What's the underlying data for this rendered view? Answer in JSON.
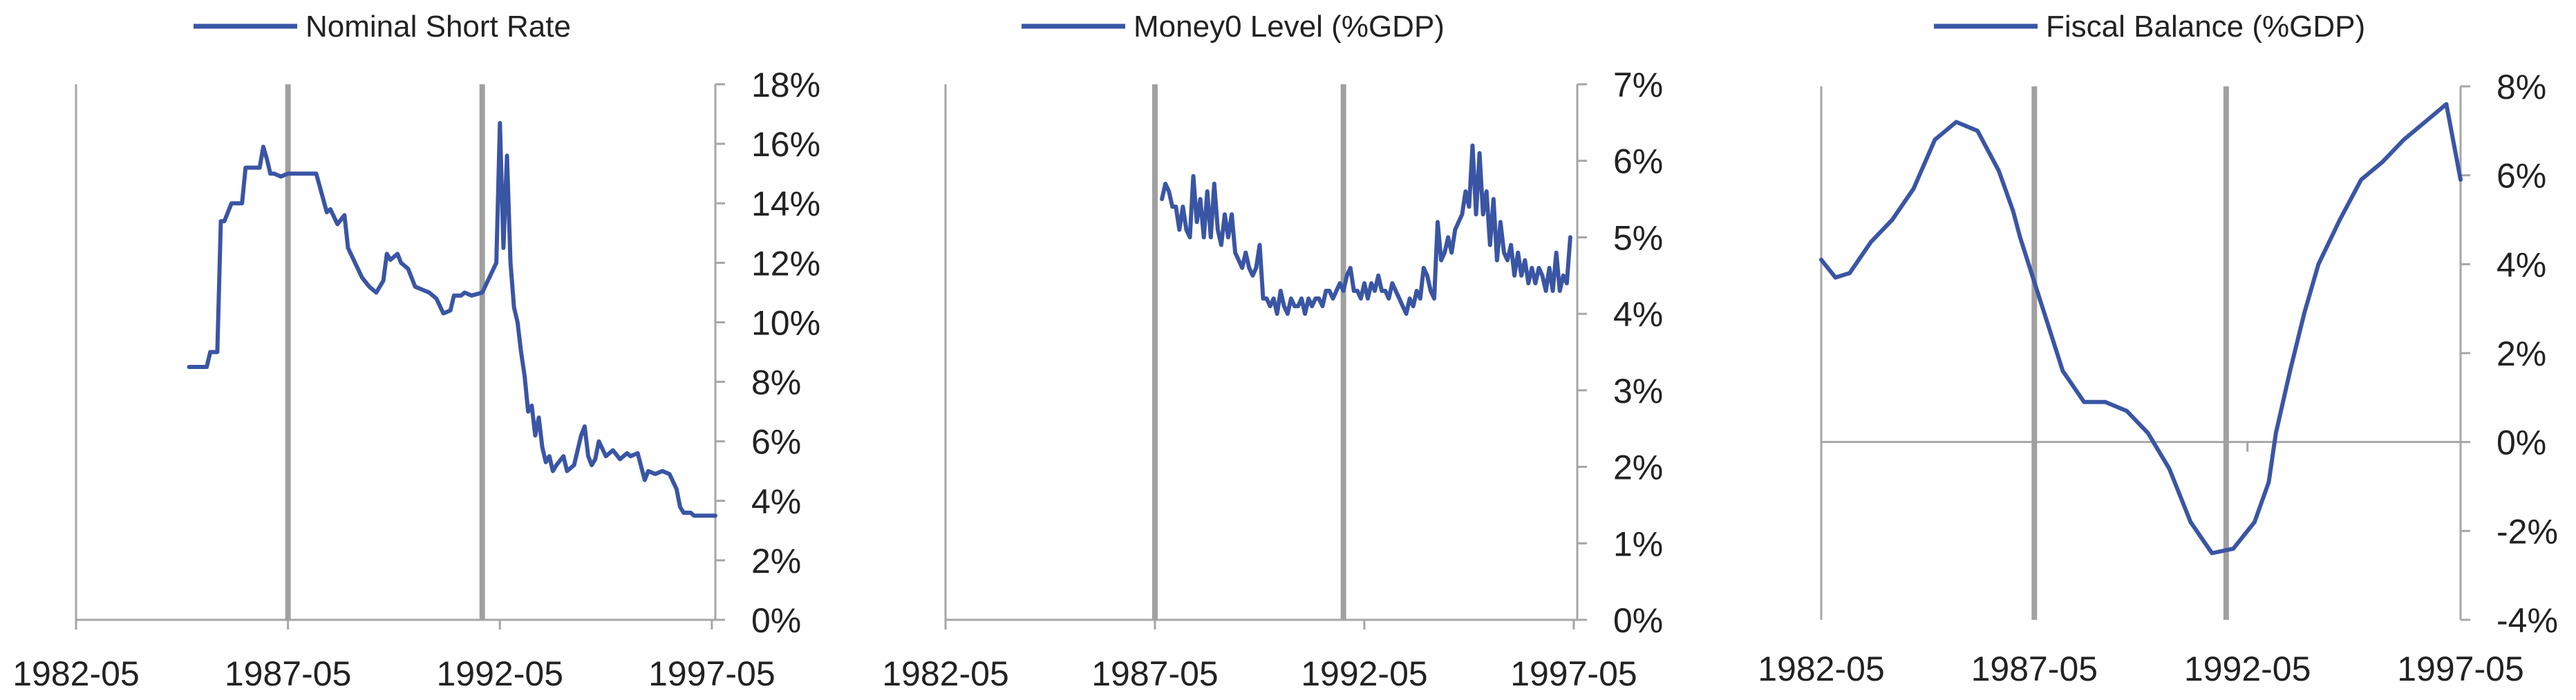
{
  "colors": {
    "series": "#3a55a4",
    "axis": "#a6a6a6",
    "marker": "#a0a0a0",
    "text": "#222222"
  },
  "chart_data": [
    {
      "type": "line",
      "title": "",
      "xlabel": "",
      "ylabel": "",
      "legend_position": "top",
      "x_range": [
        1982.3333,
        1997.4167
      ],
      "xticks": [
        1982.3333,
        1987.3333,
        1992.3333,
        1997.3333
      ],
      "xtick_labels": [
        "1982-05",
        "1987-05",
        "1992-05",
        "1997-05"
      ],
      "ylim": [
        0,
        18
      ],
      "yticks": [
        0,
        2,
        4,
        6,
        8,
        10,
        12,
        14,
        16,
        18
      ],
      "ytick_labels": [
        "0%",
        "2%",
        "4%",
        "6%",
        "8%",
        "10%",
        "12%",
        "14%",
        "16%",
        "18%"
      ],
      "grid": false,
      "vertical_markers": [
        1987.3333,
        1991.9167
      ],
      "series": [
        {
          "name": "Nominal Short Rate",
          "x": [
            1985.0,
            1985.4167,
            1985.5,
            1985.6667,
            1985.75,
            1985.8333,
            1986.0,
            1986.25,
            1986.3333,
            1986.5,
            1986.6667,
            1986.75,
            1986.8333,
            1986.9167,
            1987.0,
            1987.1667,
            1987.3333,
            1987.5,
            1987.6667,
            1988.0,
            1988.25,
            1988.3333,
            1988.5,
            1988.6667,
            1988.75,
            1988.9167,
            1989.0833,
            1989.25,
            1989.4167,
            1989.5833,
            1989.6667,
            1989.75,
            1989.9167,
            1990.0,
            1990.0833,
            1990.1667,
            1990.3333,
            1990.5,
            1990.6667,
            1990.8333,
            1991.0,
            1991.1667,
            1991.25,
            1991.4167,
            1991.5,
            1991.6667,
            1991.9167,
            1992.0833,
            1992.25,
            1992.3333,
            1992.4167,
            1992.5,
            1992.5833,
            1992.6667,
            1992.75,
            1992.8333,
            1992.9167,
            1993.0,
            1993.0833,
            1993.1667,
            1993.25,
            1993.3333,
            1993.4167,
            1993.5,
            1993.5833,
            1993.6667,
            1993.8333,
            1993.9167,
            1994.0833,
            1994.25,
            1994.3333,
            1994.4167,
            1994.5,
            1994.5833,
            1994.6667,
            1994.8333,
            1995.0,
            1995.1667,
            1995.3333,
            1995.4167,
            1995.5833,
            1995.75,
            1995.8333,
            1996.0,
            1996.1667,
            1996.3333,
            1996.5,
            1996.5833,
            1996.6667,
            1996.8333,
            1996.9167,
            1997.0,
            1997.1667,
            1997.25,
            1997.4167
          ],
          "y": [
            8.5,
            8.5,
            9.0,
            9.0,
            13.4,
            13.4,
            14.0,
            14.0,
            15.2,
            15.2,
            15.2,
            15.9,
            15.5,
            15.0,
            15.0,
            14.9,
            15.0,
            15.0,
            15.0,
            15.0,
            13.7,
            13.8,
            13.3,
            13.6,
            12.5,
            12.0,
            11.5,
            11.2,
            11.0,
            11.4,
            12.3,
            12.1,
            12.3,
            12.0,
            11.9,
            11.8,
            11.2,
            11.1,
            11.0,
            10.8,
            10.3,
            10.4,
            10.9,
            10.9,
            11.0,
            10.9,
            11.0,
            11.5,
            12.0,
            16.7,
            12.5,
            15.6,
            12.0,
            10.5,
            10.0,
            9.0,
            8.2,
            7.0,
            7.2,
            6.2,
            6.8,
            5.8,
            5.3,
            5.5,
            5.0,
            5.2,
            5.5,
            5.0,
            5.2,
            6.2,
            6.5,
            5.5,
            5.2,
            5.4,
            6.0,
            5.5,
            5.7,
            5.4,
            5.6,
            5.5,
            5.6,
            4.7,
            5.0,
            4.9,
            5.0,
            4.9,
            4.4,
            3.8,
            3.6,
            3.6,
            3.5,
            3.5,
            3.5,
            3.5,
            3.5
          ]
        }
      ]
    },
    {
      "type": "line",
      "title": "",
      "xlabel": "",
      "ylabel": "",
      "legend_position": "top",
      "x_range": [
        1982.3333,
        1997.4167
      ],
      "xticks": [
        1982.3333,
        1987.3333,
        1992.3333,
        1997.3333
      ],
      "xtick_labels": [
        "1982-05",
        "1987-05",
        "1992-05",
        "1997-05"
      ],
      "ylim": [
        0,
        7
      ],
      "yticks": [
        0,
        1,
        2,
        3,
        4,
        5,
        6,
        7
      ],
      "ytick_labels": [
        "0%",
        "1%",
        "2%",
        "3%",
        "4%",
        "5%",
        "6%",
        "7%"
      ],
      "grid": false,
      "vertical_markers": [
        1987.3333,
        1991.8333
      ],
      "series": [
        {
          "name": "Money0 Level (%GDP)",
          "x": [
            1987.5,
            1987.5833,
            1987.6667,
            1987.75,
            1987.8333,
            1987.9167,
            1988.0,
            1988.0833,
            1988.1667,
            1988.25,
            1988.3333,
            1988.4167,
            1988.5,
            1988.5833,
            1988.6667,
            1988.75,
            1988.8333,
            1988.9167,
            1989.0,
            1989.0833,
            1989.1667,
            1989.25,
            1989.3333,
            1989.4167,
            1989.5,
            1989.5833,
            1989.6667,
            1989.75,
            1989.8333,
            1989.9167,
            1990.0,
            1990.0833,
            1990.1667,
            1990.25,
            1990.3333,
            1990.4167,
            1990.5,
            1990.5833,
            1990.6667,
            1990.75,
            1990.8333,
            1990.9167,
            1991.0,
            1991.0833,
            1991.1667,
            1991.25,
            1991.3333,
            1991.4167,
            1991.5,
            1991.5833,
            1991.6667,
            1991.75,
            1991.8333,
            1991.9167,
            1992.0,
            1992.0833,
            1992.1667,
            1992.25,
            1992.3333,
            1992.4167,
            1992.5,
            1992.5833,
            1992.6667,
            1992.75,
            1992.8333,
            1992.9167,
            1993.0,
            1993.0833,
            1993.1667,
            1993.25,
            1993.3333,
            1993.4167,
            1993.5,
            1993.5833,
            1993.6667,
            1993.75,
            1993.8333,
            1993.9167,
            1994.0,
            1994.0833,
            1994.1667,
            1994.25,
            1994.3333,
            1994.4167,
            1994.5,
            1994.5833,
            1994.6667,
            1994.75,
            1994.8333,
            1994.9167,
            1995.0,
            1995.0833,
            1995.1667,
            1995.25,
            1995.3333,
            1995.4167,
            1995.5,
            1995.5833,
            1995.6667,
            1995.75,
            1995.8333,
            1995.9167,
            1996.0,
            1996.0833,
            1996.1667,
            1996.25,
            1996.3333,
            1996.4167,
            1996.5,
            1996.5833,
            1996.6667,
            1996.75,
            1996.8333,
            1996.9167,
            1997.0,
            1997.0833,
            1997.1667,
            1997.25
          ],
          "y": [
            5.5,
            5.7,
            5.6,
            5.4,
            5.4,
            5.1,
            5.4,
            5.1,
            5.0,
            5.8,
            5.2,
            5.5,
            5.0,
            5.6,
            5.0,
            5.7,
            5.1,
            4.9,
            5.3,
            5.0,
            5.3,
            4.8,
            4.7,
            4.6,
            4.8,
            4.6,
            4.5,
            4.6,
            4.9,
            4.2,
            4.2,
            4.1,
            4.2,
            4.0,
            4.3,
            4.1,
            4.0,
            4.2,
            4.1,
            4.1,
            4.2,
            4.0,
            4.2,
            4.1,
            4.2,
            4.2,
            4.1,
            4.3,
            4.3,
            4.2,
            4.3,
            4.4,
            4.3,
            4.5,
            4.6,
            4.3,
            4.3,
            4.2,
            4.4,
            4.2,
            4.4,
            4.3,
            4.5,
            4.3,
            4.3,
            4.2,
            4.4,
            4.3,
            4.2,
            4.1,
            4.0,
            4.2,
            4.1,
            4.3,
            4.2,
            4.6,
            4.5,
            4.3,
            4.2,
            5.2,
            4.7,
            4.8,
            5.0,
            4.8,
            5.1,
            5.2,
            5.3,
            5.6,
            5.4,
            6.2,
            5.3,
            6.1,
            5.3,
            5.6,
            4.9,
            5.5,
            4.7,
            5.2,
            4.8,
            4.7,
            4.9,
            4.5,
            4.8,
            4.5,
            4.7,
            4.4,
            4.6,
            4.4,
            4.6,
            4.5,
            4.3,
            4.6,
            4.3,
            4.8,
            4.3,
            4.5,
            4.4,
            5.0
          ],
          "points_sparse_check": [
            4.3,
            4.6,
            4.2,
            6.2,
            4.5,
            4.4,
            5.7,
            4.6,
            4.7
          ]
        }
      ]
    },
    {
      "type": "line",
      "title": "",
      "xlabel": "",
      "ylabel": "",
      "legend_position": "top",
      "x_range": [
        1982.3333,
        1997.3333
      ],
      "xticks": [
        1982.3333,
        1987.3333,
        1992.3333,
        1997.3333
      ],
      "xtick_labels": [
        "1982-05",
        "1987-05",
        "1992-05",
        "1997-05"
      ],
      "ylim": [
        -4,
        8
      ],
      "yticks": [
        -4,
        -2,
        0,
        2,
        4,
        6,
        8
      ],
      "ytick_labels": [
        "-4%",
        "-2%",
        "0%",
        "2%",
        "4%",
        "6%",
        "8%"
      ],
      "grid": false,
      "vertical_markers": [
        1987.3333,
        1991.8333
      ],
      "series": [
        {
          "name": "Fiscal Balance (%GDP)",
          "x": [
            1982.3333,
            1982.6667,
            1983.0,
            1983.5,
            1984.0,
            1984.5,
            1985.0,
            1985.5,
            1986.0,
            1986.5,
            1986.8333,
            1987.0,
            1987.3333,
            1987.6667,
            1988.0,
            1988.5,
            1989.0,
            1989.5,
            1990.0,
            1990.5,
            1991.0,
            1991.5,
            1992.0,
            1992.5,
            1992.8333,
            1993.0,
            1993.3333,
            1993.6667,
            1994.0,
            1994.5,
            1995.0,
            1995.5,
            1996.0,
            1996.5,
            1997.0,
            1997.3333
          ],
          "y": [
            4.1,
            3.7,
            3.8,
            4.5,
            5.0,
            5.7,
            6.8,
            7.2,
            7.0,
            6.1,
            5.2,
            4.6,
            3.6,
            2.6,
            1.6,
            0.9,
            0.9,
            0.7,
            0.2,
            -0.6,
            -1.8,
            -2.5,
            -2.4,
            -1.8,
            -0.9,
            0.2,
            1.6,
            2.9,
            4.0,
            5.0,
            5.9,
            6.3,
            6.8,
            7.2,
            7.6,
            5.9
          ],
          "note_free_points": [
            [
              1982.3333,
              4.1
            ],
            [
              1982.75,
              3.7
            ],
            [
              1983.0,
              3.7
            ],
            [
              1983.5,
              4.3
            ],
            [
              1984.0,
              4.8
            ],
            [
              1984.5,
              5.2
            ],
            [
              1985.0,
              6.1
            ],
            [
              1985.5,
              6.9
            ],
            [
              1985.9167,
              7.2
            ],
            [
              1986.25,
              7.0
            ],
            [
              1986.75,
              5.6
            ],
            [
              1987.25,
              3.9
            ],
            [
              1987.75,
              2.7
            ],
            [
              1988.25,
              1.6
            ],
            [
              1988.75,
              0.8
            ],
            [
              1989.25,
              0.9
            ],
            [
              1989.75,
              0.5
            ],
            [
              1990.25,
              -0.6
            ],
            [
              1990.75,
              -2.0
            ],
            [
              1991.0,
              -2.5
            ],
            [
              1991.25,
              -2.5
            ],
            [
              1991.75,
              -2.0
            ],
            [
              1992.25,
              -0.8
            ],
            [
              1992.75,
              0.9
            ],
            [
              1993.25,
              2.6
            ],
            [
              1993.75,
              4.0
            ],
            [
              1994.25,
              5.2
            ],
            [
              1994.6667,
              5.9
            ]
          ]
        }
      ]
    }
  ]
}
